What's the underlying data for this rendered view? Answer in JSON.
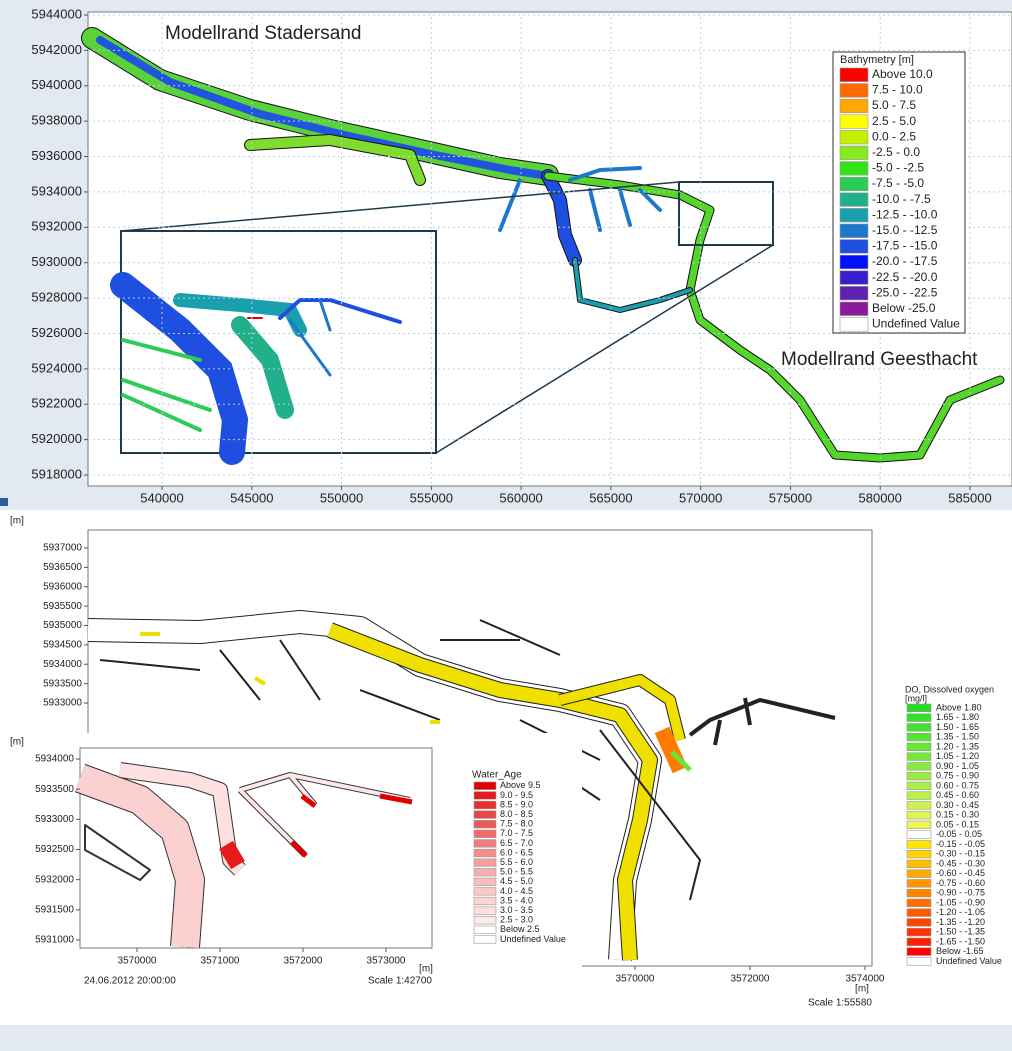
{
  "top_map": {
    "annotations": [
      "Modellrand Stadersand",
      "Modellrand Geesthacht"
    ],
    "yticks": [
      5944000,
      5942000,
      5940000,
      5938000,
      5936000,
      5934000,
      5932000,
      5930000,
      5928000,
      5926000,
      5924000,
      5922000,
      5920000,
      5918000
    ],
    "xticks": [
      540000,
      545000,
      550000,
      555000,
      560000,
      565000,
      570000,
      575000,
      580000,
      585000
    ],
    "legend": {
      "title": "Bathymetry [m]",
      "items": [
        {
          "label": "Above  10.0",
          "color": "#ff0000"
        },
        {
          "label": "7.5 -  10.0",
          "color": "#ff6a00"
        },
        {
          "label": "5.0 -   7.5",
          "color": "#ffa800"
        },
        {
          "label": "2.5 -   5.0",
          "color": "#ffff00"
        },
        {
          "label": "0.0 -   2.5",
          "color": "#c4f000"
        },
        {
          "label": "-2.5 -   0.0",
          "color": "#86ea1e"
        },
        {
          "label": "-5.0 -  -2.5",
          "color": "#33e31a"
        },
        {
          "label": "-7.5 -  -5.0",
          "color": "#2ccc55"
        },
        {
          "label": "-10.0 -  -7.5",
          "color": "#22b08a"
        },
        {
          "label": "-12.5 - -10.0",
          "color": "#1a9fae"
        },
        {
          "label": "-15.0 - -12.5",
          "color": "#1d78cc"
        },
        {
          "label": "-17.5 - -15.0",
          "color": "#1f4fe0"
        },
        {
          "label": "-20.0 - -17.5",
          "color": "#0010ff"
        },
        {
          "label": "-22.5 - -20.0",
          "color": "#3a20cc"
        },
        {
          "label": "-25.0 - -22.5",
          "color": "#6020b0"
        },
        {
          "label": "Below -25.0",
          "color": "#8a1a9a"
        },
        {
          "label": "Undefined Value",
          "color": "#ffffff"
        }
      ]
    }
  },
  "do_map": {
    "y_unit": "[m]",
    "yticks": [
      5937000,
      5936500,
      5936000,
      5935500,
      5935000,
      5934500,
      5934000,
      5933500,
      5933000
    ],
    "xticks": [
      3570000,
      3572000,
      3574000
    ],
    "x_unit": "[m]",
    "scale": "Scale 1:55580",
    "legend": {
      "title": "DO, Dissolved oxygen",
      "unit": "[mg/l]",
      "items": [
        {
          "label": "Above  1.80",
          "color": "#22dd22"
        },
        {
          "label": "1.65 -  1.80",
          "color": "#33e02a"
        },
        {
          "label": "1.50 -  1.65",
          "color": "#44e22e"
        },
        {
          "label": "1.35 -  1.50",
          "color": "#55e432"
        },
        {
          "label": "1.20 -  1.35",
          "color": "#66e636"
        },
        {
          "label": "1.05 -  1.20",
          "color": "#77e83a"
        },
        {
          "label": "0.90 -  1.05",
          "color": "#88ea3e"
        },
        {
          "label": "0.75 -  0.90",
          "color": "#99ec42"
        },
        {
          "label": "0.60 -  0.75",
          "color": "#aaee46"
        },
        {
          "label": "0.45 -  0.60",
          "color": "#bbf04a"
        },
        {
          "label": "0.30 -  0.45",
          "color": "#ccf24e"
        },
        {
          "label": "0.15 -  0.30",
          "color": "#ddf452"
        },
        {
          "label": "0.05 -  0.15",
          "color": "#eef656"
        },
        {
          "label": "-0.05 -  0.05",
          "color": "#ffffff"
        },
        {
          "label": "-0.15 - -0.05",
          "color": "#ffe600"
        },
        {
          "label": "-0.30 - -0.15",
          "color": "#ffd200"
        },
        {
          "label": "-0.45 - -0.30",
          "color": "#ffbe00"
        },
        {
          "label": "-0.60 - -0.45",
          "color": "#ffaa00"
        },
        {
          "label": "-0.75 - -0.60",
          "color": "#ff9600"
        },
        {
          "label": "-0.90 - -0.75",
          "color": "#ff8200"
        },
        {
          "label": "-1.05 - -0.90",
          "color": "#ff6e00"
        },
        {
          "label": "-1.20 - -1.05",
          "color": "#ff5a00"
        },
        {
          "label": "-1.35 - -1.20",
          "color": "#ff4600"
        },
        {
          "label": "-1.50 - -1.35",
          "color": "#ff3200"
        },
        {
          "label": "-1.65 - -1.50",
          "color": "#ff1e00"
        },
        {
          "label": "Below -1.65",
          "color": "#ff0000"
        },
        {
          "label": "Undefined Value",
          "color": "#ffffff"
        }
      ]
    }
  },
  "age_map": {
    "y_unit": "[m]",
    "yticks": [
      5934000,
      5933500,
      5933000,
      5932500,
      5932000,
      5931500,
      5931000
    ],
    "xticks": [
      3570000,
      3571000,
      3572000,
      3573000
    ],
    "x_unit": "[m]",
    "timestamp": "24.06.2012 20:00:00",
    "scale": "Scale 1:42700",
    "legend": {
      "title": "Water_Age",
      "items": [
        {
          "label": "Above 9.5",
          "color": "#e00000"
        },
        {
          "label": "9.0 - 9.5",
          "color": "#e61a1a"
        },
        {
          "label": "8.5 - 9.0",
          "color": "#ea2e2e"
        },
        {
          "label": "8.0 - 8.5",
          "color": "#ee4444"
        },
        {
          "label": "7.5 - 8.0",
          "color": "#f05858"
        },
        {
          "label": "7.0 - 7.5",
          "color": "#f26a6a"
        },
        {
          "label": "6.5 - 7.0",
          "color": "#f47c7c"
        },
        {
          "label": "6.0 - 6.5",
          "color": "#f68e8e"
        },
        {
          "label": "5.5 - 6.0",
          "color": "#f79e9e"
        },
        {
          "label": "5.0 - 5.5",
          "color": "#f8aeae"
        },
        {
          "label": "4.5 - 5.0",
          "color": "#f9bcbc"
        },
        {
          "label": "4.0 - 4.5",
          "color": "#fac8c8"
        },
        {
          "label": "3.5 - 4.0",
          "color": "#fbd4d4"
        },
        {
          "label": "3.0 - 3.5",
          "color": "#fce0e0"
        },
        {
          "label": "2.5 - 3.0",
          "color": "#fdeaea"
        },
        {
          "label": "Below 2.5",
          "color": "#ffffff"
        },
        {
          "label": "Undefined Value",
          "color": "#ffffff"
        }
      ]
    }
  }
}
